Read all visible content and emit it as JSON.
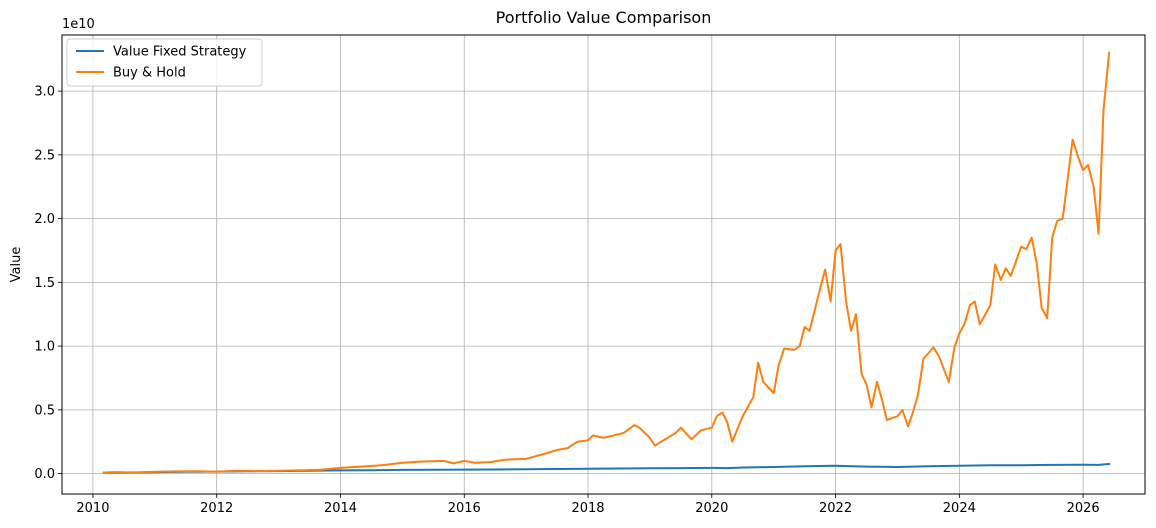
{
  "chart_data": {
    "type": "line",
    "title": "Portfolio Value Comparison",
    "xlabel": "",
    "ylabel": "Value",
    "y_offset_label": "1e10",
    "y_scale_factor": 10000000000,
    "xlim": [
      2009.5,
      2027.0
    ],
    "ylim": [
      -0.16,
      3.44
    ],
    "x_ticks": [
      2010,
      2012,
      2014,
      2016,
      2018,
      2020,
      2022,
      2024,
      2026
    ],
    "x_tick_labels": [
      "2010",
      "2012",
      "2014",
      "2016",
      "2018",
      "2020",
      "2022",
      "2024",
      "2026"
    ],
    "y_ticks": [
      0.0,
      0.5,
      1.0,
      1.5,
      2.0,
      2.5,
      3.0
    ],
    "y_tick_labels": [
      "0.0",
      "0.5",
      "1.0",
      "1.5",
      "2.0",
      "2.5",
      "3.0"
    ],
    "grid": true,
    "legend_position": "top-left",
    "series": [
      {
        "name": "Value Fixed Strategy",
        "color": "#1f77b4",
        "x": [
          2010.17,
          2010.5,
          2011.0,
          2011.5,
          2012.0,
          2012.5,
          2013.0,
          2013.5,
          2014.0,
          2014.5,
          2015.0,
          2015.5,
          2016.0,
          2016.5,
          2017.0,
          2017.5,
          2018.0,
          2018.5,
          2019.0,
          2019.5,
          2020.0,
          2020.25,
          2020.5,
          2021.0,
          2021.5,
          2022.0,
          2022.5,
          2023.0,
          2023.5,
          2024.0,
          2024.5,
          2025.0,
          2025.5,
          2026.0,
          2026.25,
          2026.42
        ],
        "y": [
          0.008,
          0.009,
          0.012,
          0.014,
          0.016,
          0.018,
          0.02,
          0.022,
          0.025,
          0.027,
          0.029,
          0.03,
          0.031,
          0.032,
          0.034,
          0.036,
          0.038,
          0.04,
          0.042,
          0.043,
          0.045,
          0.043,
          0.048,
          0.052,
          0.058,
          0.062,
          0.055,
          0.052,
          0.058,
          0.062,
          0.065,
          0.066,
          0.068,
          0.07,
          0.068,
          0.075
        ]
      },
      {
        "name": "Buy & Hold",
        "color": "#ff7f0e",
        "x": [
          2010.17,
          2010.33,
          2010.5,
          2010.67,
          2010.83,
          2011.0,
          2011.33,
          2011.67,
          2012.0,
          2012.33,
          2012.67,
          2013.0,
          2013.33,
          2013.67,
          2014.0,
          2014.33,
          2014.67,
          2015.0,
          2015.33,
          2015.67,
          2015.83,
          2016.0,
          2016.17,
          2016.42,
          2016.67,
          2017.0,
          2017.33,
          2017.5,
          2017.67,
          2017.83,
          2018.0,
          2018.08,
          2018.25,
          2018.42,
          2018.58,
          2018.75,
          2018.83,
          2019.0,
          2019.08,
          2019.25,
          2019.42,
          2019.5,
          2019.67,
          2019.83,
          2020.0,
          2020.08,
          2020.17,
          2020.25,
          2020.33,
          2020.5,
          2020.67,
          2020.75,
          2020.83,
          2021.0,
          2021.08,
          2021.17,
          2021.33,
          2021.42,
          2021.5,
          2021.58,
          2021.75,
          2021.83,
          2021.92,
          2022.0,
          2022.08,
          2022.17,
          2022.25,
          2022.33,
          2022.42,
          2022.5,
          2022.58,
          2022.67,
          2022.75,
          2022.83,
          2023.0,
          2023.08,
          2023.17,
          2023.25,
          2023.33,
          2023.42,
          2023.58,
          2023.67,
          2023.83,
          2023.92,
          2024.0,
          2024.08,
          2024.17,
          2024.25,
          2024.33,
          2024.5,
          2024.58,
          2024.67,
          2024.75,
          2024.83,
          2025.0,
          2025.08,
          2025.17,
          2025.25,
          2025.33,
          2025.42,
          2025.5,
          2025.58,
          2025.67,
          2025.83,
          2025.92,
          2026.0,
          2026.08,
          2026.17,
          2026.25,
          2026.33,
          2026.42
        ],
        "y": [
          0.008,
          0.012,
          0.01,
          0.009,
          0.011,
          0.015,
          0.017,
          0.018,
          0.016,
          0.022,
          0.02,
          0.022,
          0.025,
          0.03,
          0.045,
          0.055,
          0.065,
          0.085,
          0.095,
          0.1,
          0.08,
          0.1,
          0.085,
          0.09,
          0.11,
          0.115,
          0.16,
          0.185,
          0.2,
          0.25,
          0.26,
          0.3,
          0.28,
          0.3,
          0.32,
          0.38,
          0.36,
          0.28,
          0.22,
          0.27,
          0.32,
          0.36,
          0.27,
          0.34,
          0.36,
          0.45,
          0.48,
          0.4,
          0.25,
          0.45,
          0.6,
          0.87,
          0.72,
          0.63,
          0.85,
          0.98,
          0.97,
          1.0,
          1.15,
          1.12,
          1.45,
          1.6,
          1.35,
          1.75,
          1.8,
          1.35,
          1.12,
          1.25,
          0.78,
          0.7,
          0.52,
          0.72,
          0.58,
          0.42,
          0.45,
          0.5,
          0.37,
          0.48,
          0.62,
          0.9,
          0.99,
          0.92,
          0.72,
          0.99,
          1.1,
          1.17,
          1.32,
          1.35,
          1.17,
          1.32,
          1.64,
          1.52,
          1.61,
          1.55,
          1.78,
          1.76,
          1.85,
          1.65,
          1.3,
          1.22,
          1.85,
          1.98,
          2.0,
          2.62,
          2.48,
          2.38,
          2.42,
          2.25,
          1.88,
          2.85,
          3.3
        ]
      }
    ]
  }
}
